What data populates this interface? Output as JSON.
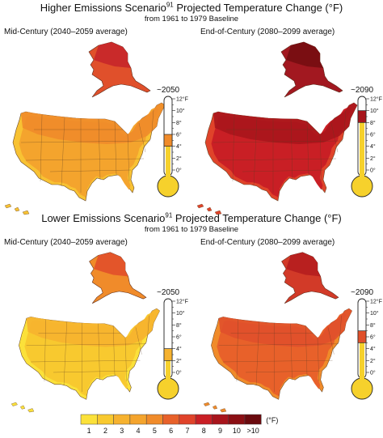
{
  "figure": {
    "baseline": "from 1961 to 1979 Baseline"
  },
  "sections": [
    {
      "title_main": "Higher Emissions Scenario",
      "title_sup": "91",
      "title_rest": " Projected Temperature Change (°F)",
      "panels": [
        {
          "label": "Mid-Century (2040–2059 average)",
          "period": "~2050",
          "warming_f": 5,
          "alaska_warming_f": 7,
          "colors": {
            "main": "#f4a42d",
            "north": "#f08b2a",
            "coast": "#f8c233",
            "alaska": "#e0502b",
            "alaska_north": "#c92a2a"
          }
        },
        {
          "label": "End-of-Century (2080–2099 average)",
          "period": "~2090",
          "warming_f": 9,
          "alaska_warming_f": 11,
          "colors": {
            "main": "#c91f25",
            "north": "#a8151c",
            "coast": "#e0432a",
            "alaska": "#a21820",
            "alaska_north": "#7a0e12"
          }
        }
      ]
    },
    {
      "title_main": "Lower Emissions Scenario",
      "title_sup": "91",
      "title_rest": " Projected Temperature Change (°F)",
      "panels": [
        {
          "label": "Mid-Century (2040–2059 average)",
          "period": "~2050",
          "warming_f": 3,
          "alaska_warming_f": 5,
          "colors": {
            "main": "#f8c92f",
            "north": "#f6b22f",
            "coast": "#fbe13a",
            "alaska": "#f08b2a",
            "alaska_north": "#e3552a"
          }
        },
        {
          "label": "End-of-Century (2080–2099 average)",
          "period": "~2090",
          "warming_f": 6,
          "alaska_warming_f": 8,
          "colors": {
            "main": "#e8612a",
            "north": "#e0502b",
            "coast": "#f08b2a",
            "alaska": "#d23a28",
            "alaska_north": "#b8201f"
          }
        }
      ]
    }
  ],
  "thermometer": {
    "ticks": [
      "12°F",
      "10°",
      "8°",
      "6°",
      "4°",
      "2°",
      "0°"
    ],
    "min_f": 0,
    "max_f": 12
  },
  "legend": {
    "labels": [
      "1",
      "2",
      "3",
      "4",
      "5",
      "6",
      "7",
      "8",
      "9",
      "10",
      ">10"
    ],
    "colors": [
      "#fbe13a",
      "#f8c92f",
      "#f6b22f",
      "#f4a42d",
      "#f08b2a",
      "#e8612a",
      "#e0432a",
      "#c91f25",
      "#a8151c",
      "#8b0f14",
      "#6a0a0e"
    ],
    "unit": "(°F)"
  }
}
